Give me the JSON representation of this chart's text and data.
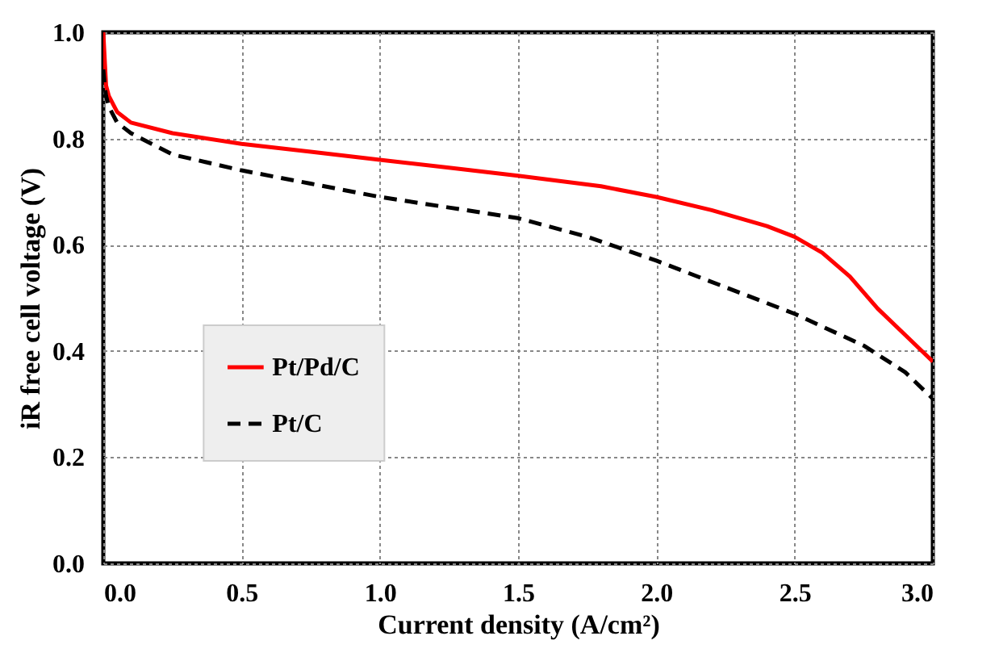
{
  "chart_data": {
    "type": "line",
    "xlabel": "Current density (A/cm²)",
    "ylabel": "iR free cell voltage (V)",
    "xlim": [
      0,
      3
    ],
    "ylim": [
      0,
      1
    ],
    "xticks": [
      {
        "value": 0,
        "label": "0.0"
      },
      {
        "value": 0.5,
        "label": "0.5"
      },
      {
        "value": 1,
        "label": "1.0"
      },
      {
        "value": 1.5,
        "label": "1.5"
      },
      {
        "value": 2,
        "label": "2.0"
      },
      {
        "value": 2.5,
        "label": "2.5"
      },
      {
        "value": 3,
        "label": "3.0"
      }
    ],
    "yticks": [
      {
        "value": 0,
        "label": "0.0"
      },
      {
        "value": 0.2,
        "label": "0.2"
      },
      {
        "value": 0.4,
        "label": "0.4"
      },
      {
        "value": 0.6,
        "label": "0.6"
      },
      {
        "value": 0.8,
        "label": "0.8"
      },
      {
        "value": 1,
        "label": "1.0"
      }
    ],
    "grid": true,
    "legend": "left",
    "marker": "none",
    "series": [
      {
        "name": "Pt/Pd/C",
        "color": "#ff0000",
        "line_style": "solid",
        "x": [
          0,
          0.005,
          0.01,
          0.02,
          0.05,
          0.1,
          0.25,
          0.5,
          0.75,
          1.0,
          1.25,
          1.5,
          1.8,
          2.0,
          2.2,
          2.4,
          2.5,
          2.6,
          2.7,
          2.8,
          2.9,
          3.0
        ],
        "values": [
          1.0,
          0.95,
          0.9,
          0.88,
          0.85,
          0.83,
          0.81,
          0.79,
          0.775,
          0.76,
          0.745,
          0.73,
          0.71,
          0.69,
          0.665,
          0.635,
          0.615,
          0.585,
          0.54,
          0.48,
          0.43,
          0.38
        ]
      },
      {
        "name": "Pt/C",
        "color": "#000000",
        "line_style": "dashed",
        "x": [
          0,
          0.005,
          0.01,
          0.02,
          0.05,
          0.1,
          0.25,
          0.5,
          0.75,
          1.0,
          1.25,
          1.5,
          1.75,
          2.0,
          2.25,
          2.5,
          2.75,
          2.9,
          3.0
        ],
        "values": [
          0.93,
          0.9,
          0.88,
          0.86,
          0.83,
          0.81,
          0.77,
          0.74,
          0.715,
          0.69,
          0.67,
          0.65,
          0.615,
          0.57,
          0.52,
          0.47,
          0.41,
          0.36,
          0.31
        ]
      }
    ]
  }
}
